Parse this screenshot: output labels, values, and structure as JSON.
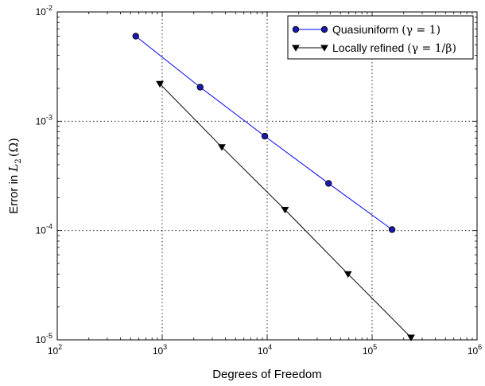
{
  "chart_data": {
    "type": "line",
    "xscale": "log",
    "yscale": "log",
    "xlim": [
      100,
      1000000
    ],
    "ylim": [
      1e-05,
      0.01
    ],
    "xticks": [
      {
        "base": "10",
        "exp": "2"
      },
      {
        "base": "10",
        "exp": "3"
      },
      {
        "base": "10",
        "exp": "4"
      },
      {
        "base": "10",
        "exp": "5"
      },
      {
        "base": "10",
        "exp": "6"
      }
    ],
    "yticks": [
      {
        "base": "10",
        "exp": "-5"
      },
      {
        "base": "10",
        "exp": "-4"
      },
      {
        "base": "10",
        "exp": "-3"
      },
      {
        "base": "10",
        "exp": "-2"
      }
    ],
    "xlabel": "Degrees of Freedom",
    "ylabel": {
      "prefix": "Error in ",
      "symbol": "L",
      "subscript": "2",
      "argument": "(Ω)"
    },
    "grid": true,
    "grid_style": "dotted",
    "legend_position": "top-right",
    "series": [
      {
        "name": {
          "text": "Quasiuniform",
          "math": "(γ = 1)"
        },
        "color": "#0000ff",
        "marker": "circle",
        "marker_fill": "#1a1aaa",
        "x": [
          560,
          2300,
          9500,
          38500,
          155000
        ],
        "y": [
          0.006,
          0.00205,
          0.00073,
          0.00027,
          0.000102
        ]
      },
      {
        "name": {
          "text": "Locally refined",
          "math": "(γ = 1/β)"
        },
        "color": "#000000",
        "marker": "triangle-down",
        "marker_fill": "#000000",
        "x": [
          950,
          3700,
          14800,
          59000,
          235000
        ],
        "y": [
          0.0022,
          0.00058,
          0.000155,
          4e-05,
          1.05e-05
        ]
      }
    ]
  }
}
